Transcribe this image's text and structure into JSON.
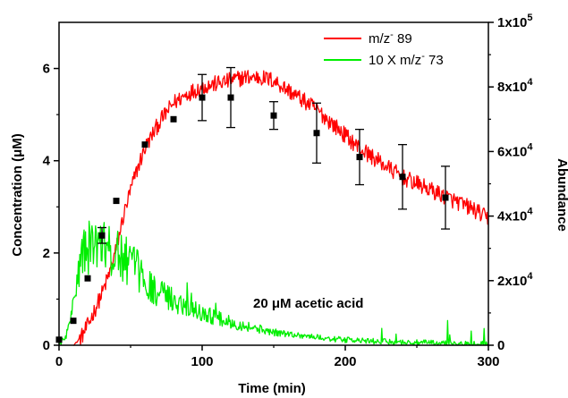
{
  "chart_data": {
    "type": "line",
    "title": "",
    "annotation": "20 μM acetic acid",
    "xlabel": "Time (min)",
    "ylabel_left": "Concentration (μM)",
    "ylabel_right": "Abundance",
    "xlim": [
      0,
      300
    ],
    "ylim_left": [
      0,
      7
    ],
    "ylim_right": [
      0,
      100000
    ],
    "x_ticks": [
      0,
      100,
      200,
      300
    ],
    "x_tick_labels": [
      "0",
      "100",
      "200",
      "300"
    ],
    "y_left_ticks": [
      0,
      2,
      4,
      6
    ],
    "y_left_tick_labels": [
      "0",
      "2",
      "4",
      "6"
    ],
    "y_right_ticks": [
      0,
      20000,
      40000,
      60000,
      80000,
      100000
    ],
    "y_right_tick_labels": [
      {
        "base": "0",
        "exp": ""
      },
      {
        "base": "2x10",
        "exp": "4"
      },
      {
        "base": "4x10",
        "exp": "4"
      },
      {
        "base": "6x10",
        "exp": "4"
      },
      {
        "base": "8x10",
        "exp": "4"
      },
      {
        "base": "1x10",
        "exp": "5"
      }
    ],
    "grid": false,
    "legend": {
      "placement": "top-right",
      "entries": [
        {
          "text_pre": "m/z",
          "sup": "-",
          "text_post": " 89",
          "color": "#ff0000"
        },
        {
          "text_pre": "10 X m/z",
          "sup": "-",
          "text_post": " 73",
          "color": "#00ee00"
        }
      ]
    },
    "series": [
      {
        "legend_index": 0,
        "axis": "right",
        "color": "#ff0000",
        "x": [
          10,
          15,
          20,
          25,
          30,
          35,
          40,
          45,
          50,
          55,
          60,
          65,
          70,
          75,
          80,
          90,
          100,
          110,
          120,
          130,
          140,
          150,
          160,
          170,
          180,
          190,
          200,
          210,
          220,
          230,
          240,
          250,
          260,
          270,
          280,
          290,
          300
        ],
        "y": [
          0,
          2000,
          6000,
          11000,
          16000,
          22000,
          30000,
          40000,
          48000,
          55000,
          61000,
          65000,
          69000,
          72000,
          75000,
          78000,
          80000,
          81000,
          82000,
          83000,
          83000,
          82000,
          79000,
          76000,
          73000,
          69000,
          65000,
          61000,
          58000,
          55000,
          52000,
          50000,
          48000,
          46000,
          44000,
          42000,
          39000
        ]
      },
      {
        "legend_index": 1,
        "axis": "right",
        "color": "#00ee00",
        "x": [
          0,
          5,
          10,
          13,
          16,
          20,
          25,
          30,
          35,
          40,
          45,
          50,
          55,
          60,
          70,
          80,
          90,
          100,
          110,
          120,
          130,
          140,
          150,
          160,
          170,
          180,
          190,
          200,
          220,
          240,
          260,
          280,
          300
        ],
        "y": [
          0,
          3000,
          12000,
          22000,
          28000,
          30000,
          31000,
          30000,
          29000,
          28000,
          27000,
          25000,
          23000,
          20000,
          16000,
          14000,
          12000,
          10000,
          8500,
          7000,
          6000,
          5000,
          4000,
          3500,
          3000,
          2500,
          2000,
          1600,
          1200,
          900,
          700,
          500,
          400
        ]
      },
      {
        "name": "",
        "axis": "left",
        "type": "scatter",
        "color": "#000000",
        "x": [
          0,
          10,
          20,
          30,
          40,
          60,
          80,
          100,
          120,
          150,
          180,
          210,
          240,
          270
        ],
        "y": [
          0.12,
          0.53,
          1.45,
          2.38,
          3.13,
          4.35,
          4.9,
          5.37,
          5.37,
          4.98,
          4.6,
          4.08,
          3.65,
          3.2
        ],
        "err": [
          0,
          0,
          0,
          0.17,
          0,
          0,
          0,
          0.5,
          0.65,
          0.3,
          0.65,
          0.6,
          0.7,
          0.68
        ]
      }
    ]
  }
}
